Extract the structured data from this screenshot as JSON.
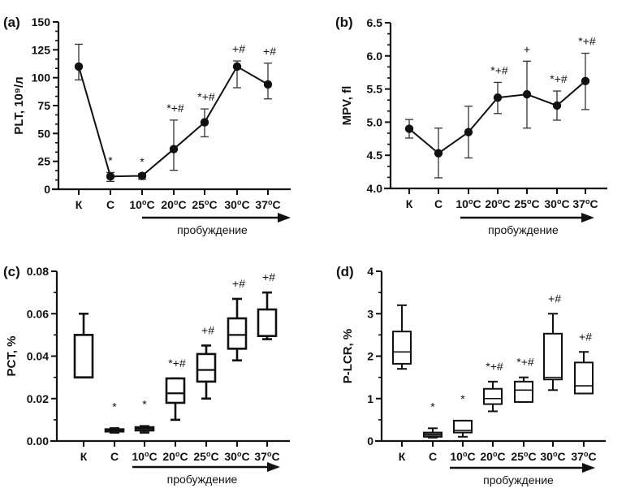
{
  "figure": {
    "x_categories": [
      "К",
      "С",
      "10ºC",
      "20ºC",
      "25ºC",
      "30ºC",
      "37ºC"
    ],
    "arrow_label": "пробуждение"
  },
  "chart_data": [
    {
      "panel": "(a)",
      "type": "line",
      "title": "",
      "xlabel": "",
      "ylabel": "PLT, 10⁹/л",
      "ylim": [
        0,
        150
      ],
      "yticks": [
        "0",
        "25",
        "50",
        "75",
        "100",
        "125",
        "150"
      ],
      "categories": [
        "К",
        "С",
        "10ºC",
        "20ºC",
        "25ºC",
        "30ºC",
        "37ºC"
      ],
      "series": [
        {
          "name": "PLT",
          "values": [
            110,
            11.5,
            12,
            36,
            60,
            110,
            94
          ],
          "err_low": [
            98,
            7,
            9,
            17,
            47,
            91,
            81
          ],
          "err_high": [
            130,
            15,
            14,
            62,
            72,
            115,
            113
          ]
        }
      ],
      "annotations": [
        "",
        "*",
        "*",
        "*+#",
        "*+#",
        "+#",
        "+#"
      ],
      "grid": false
    },
    {
      "panel": "(b)",
      "type": "line",
      "title": "",
      "xlabel": "",
      "ylabel": "MPV, fl",
      "ylim": [
        4.0,
        6.5
      ],
      "yticks": [
        "4.0",
        "4.5",
        "5.0",
        "5.5",
        "6.0",
        "6.5"
      ],
      "categories": [
        "К",
        "С",
        "10ºC",
        "20ºC",
        "25ºC",
        "30ºC",
        "37ºC"
      ],
      "series": [
        {
          "name": "MPV",
          "values": [
            4.9,
            4.53,
            4.85,
            5.37,
            5.42,
            5.25,
            5.62
          ],
          "err_low": [
            4.76,
            4.16,
            4.46,
            5.13,
            4.91,
            5.03,
            5.19
          ],
          "err_high": [
            5.04,
            4.91,
            5.24,
            5.6,
            5.92,
            5.47,
            6.04
          ]
        }
      ],
      "annotations": [
        "",
        "",
        "",
        "*+#",
        "+",
        "*+#",
        "*+#"
      ],
      "grid": false
    },
    {
      "panel": "(c)",
      "type": "box",
      "title": "",
      "xlabel": "",
      "ylabel": "PCT, %",
      "ylim": [
        0,
        0.08
      ],
      "yticks": [
        "0.00",
        "0.02",
        "0.04",
        "0.06",
        "0.08"
      ],
      "categories": [
        "К",
        "С",
        "10ºC",
        "20ºC",
        "25ºC",
        "30ºC",
        "37ºC"
      ],
      "boxes": [
        {
          "min": 0.03,
          "q1": 0.03,
          "median": 0.05,
          "q3": 0.05,
          "max": 0.06
        },
        {
          "min": 0.004,
          "q1": 0.0045,
          "median": 0.005,
          "q3": 0.0055,
          "max": 0.006
        },
        {
          "min": 0.004,
          "q1": 0.005,
          "median": 0.006,
          "q3": 0.0065,
          "max": 0.007
        },
        {
          "min": 0.01,
          "q1": 0.018,
          "median": 0.0225,
          "q3": 0.0295,
          "max": 0.0295
        },
        {
          "min": 0.02,
          "q1": 0.028,
          "median": 0.0335,
          "q3": 0.041,
          "max": 0.045
        },
        {
          "min": 0.038,
          "q1": 0.0435,
          "median": 0.05,
          "q3": 0.0578,
          "max": 0.067
        },
        {
          "min": 0.048,
          "q1": 0.0495,
          "median": 0.0495,
          "q3": 0.062,
          "max": 0.07
        }
      ],
      "annotations": [
        "",
        "*",
        "*",
        "*+#",
        "+#",
        "+#",
        "+#"
      ],
      "grid": false
    },
    {
      "panel": "(d)",
      "type": "box",
      "title": "",
      "xlabel": "",
      "ylabel": "P-LCR, %",
      "ylim": [
        0,
        4
      ],
      "yticks": [
        "0",
        "1",
        "2",
        "3",
        "4"
      ],
      "categories": [
        "К",
        "С",
        "10ºC",
        "20ºC",
        "25ºC",
        "30ºC",
        "37ºC"
      ],
      "boxes": [
        {
          "min": 1.7,
          "q1": 1.82,
          "median": 2.1,
          "q3": 2.58,
          "max": 3.2
        },
        {
          "min": 0.08,
          "q1": 0.1,
          "median": 0.15,
          "q3": 0.2,
          "max": 0.3
        },
        {
          "min": 0.1,
          "q1": 0.2,
          "median": 0.25,
          "q3": 0.48,
          "max": 0.48
        },
        {
          "min": 0.7,
          "q1": 0.87,
          "median": 1.0,
          "q3": 1.23,
          "max": 1.4
        },
        {
          "min": 0.92,
          "q1": 0.92,
          "median": 1.2,
          "q3": 1.4,
          "max": 1.5
        },
        {
          "min": 1.2,
          "q1": 1.45,
          "median": 1.5,
          "q3": 2.53,
          "max": 3.0
        },
        {
          "min": 1.12,
          "q1": 1.12,
          "median": 1.3,
          "q3": 1.85,
          "max": 2.1
        }
      ],
      "annotations": [
        "",
        "*",
        "*",
        "*+#",
        "*+#",
        "+#",
        "+#"
      ],
      "grid": false
    }
  ]
}
